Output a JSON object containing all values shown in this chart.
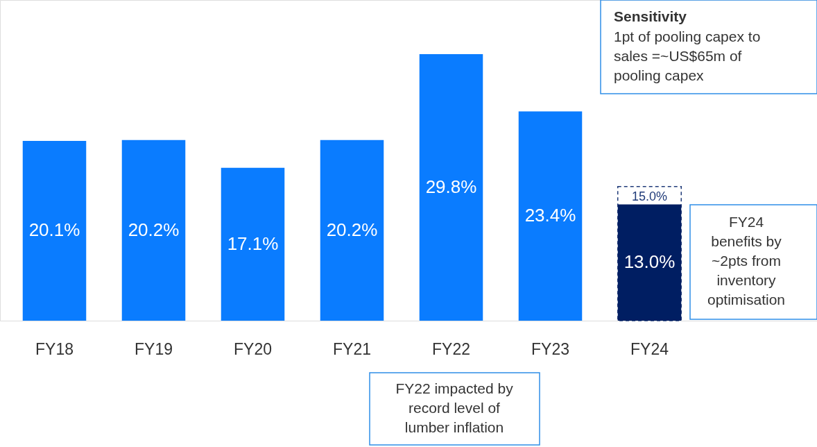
{
  "chart_data": {
    "type": "bar",
    "grid": false,
    "tick_labels": "x",
    "categories": [
      "FY18",
      "FY19",
      "FY20",
      "FY21",
      "FY22",
      "FY23",
      "FY24"
    ],
    "series": [
      {
        "values": [
          null,
          null,
          null,
          null,
          null,
          null,
          15.0
        ],
        "color": "#1f3a78",
        "line_style": "dashed",
        "value_labels": [
          null,
          null,
          null,
          null,
          null,
          null,
          "15.0%"
        ]
      },
      {
        "values": [
          20.1,
          20.2,
          17.1,
          20.2,
          29.8,
          23.4,
          13.0
        ],
        "colors": [
          "#0a7cff",
          "#0a7cff",
          "#0a7cff",
          "#0a7cff",
          "#0a7cff",
          "#0a7cff",
          "#001e62"
        ],
        "value_labels": [
          "20.1%",
          "20.2%",
          "17.1%",
          "20.2%",
          "29.8%",
          "23.4%",
          "13.0%"
        ]
      }
    ],
    "annotations": [
      "Sensitivity",
      "1pt of pooling capex to sales =~US$65m of pooling capex",
      "FY24 benefits by ~2pts from inventory optimisation",
      "FY22 impacted by record level of lumber inflation"
    ]
  }
}
